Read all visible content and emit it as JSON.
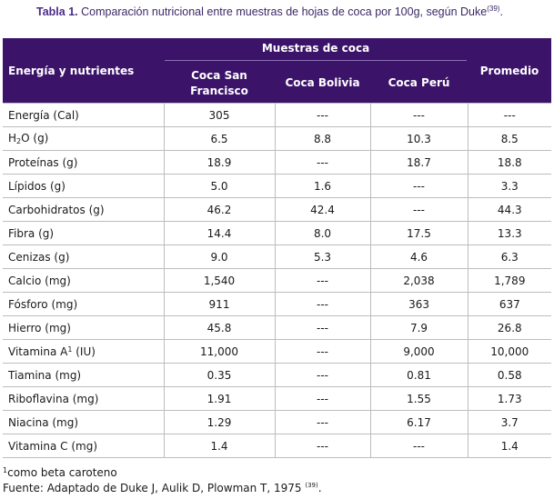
{
  "caption": {
    "label": "Tabla 1.",
    "text": " Comparación nutricional entre muestras de hojas de coca por 100g, según Duke",
    "ref": "(39)",
    "end": "."
  },
  "table": {
    "header": {
      "energy": "Energía y nutrientes",
      "group": "Muestras de coca",
      "col1": "Coca San Francisco",
      "col2": "Coca Bolivia",
      "col3": "Coca Perú",
      "col4": "Promedio"
    },
    "rows": [
      {
        "name": "Energía (Cal)",
        "v": [
          "305",
          "---",
          "---",
          "---"
        ]
      },
      {
        "name_pre": "H",
        "name_sub": "2",
        "name_post": "O (g)",
        "v": [
          "6.5",
          "8.8",
          "10.3",
          "8.5"
        ]
      },
      {
        "name": "Proteínas (g)",
        "v": [
          "18.9",
          "---",
          "18.7",
          "18.8"
        ]
      },
      {
        "name": "Lípidos (g)",
        "v": [
          "5.0",
          "1.6",
          "---",
          "3.3"
        ]
      },
      {
        "name": "Carbohidratos (g)",
        "v": [
          "46.2",
          "42.4",
          "---",
          "44.3"
        ]
      },
      {
        "name": "Fibra (g)",
        "v": [
          "14.4",
          "8.0",
          "17.5",
          "13.3"
        ]
      },
      {
        "name": "Cenizas (g)",
        "v": [
          "9.0",
          "5.3",
          "4.6",
          "6.3"
        ]
      },
      {
        "name": "Calcio (mg)",
        "v": [
          "1,540",
          "---",
          "2,038",
          "1,789"
        ]
      },
      {
        "name": "Fósforo (mg)",
        "v": [
          "911",
          "---",
          "363",
          "637"
        ]
      },
      {
        "name": "Hierro (mg)",
        "v": [
          "45.8",
          "---",
          "7.9",
          "26.8"
        ]
      },
      {
        "name_pre": "Vitamina A",
        "name_sup": "1",
        "name_post": " (IU)",
        "v": [
          "11,000",
          "---",
          "9,000",
          "10,000"
        ]
      },
      {
        "name": "Tiamina (mg)",
        "v": [
          "0.35",
          "---",
          "0.81",
          "0.58"
        ]
      },
      {
        "name": "Riboflavina (mg)",
        "v": [
          "1.91",
          "---",
          "1.55",
          "1.73"
        ]
      },
      {
        "name": "Niacina (mg)",
        "v": [
          "1.29",
          "---",
          "6.17",
          "3.7"
        ]
      },
      {
        "name": "Vitamina C (mg)",
        "v": [
          "1.4",
          "---",
          "---",
          "1.4"
        ]
      }
    ]
  },
  "footnote": {
    "mark": "1",
    "text": "como beta caroteno",
    "source": "Fuente: Adaptado de Duke J, Aulik D, Plowman T, 1975 ",
    "source_ref": "(39)",
    "source_end": "."
  }
}
